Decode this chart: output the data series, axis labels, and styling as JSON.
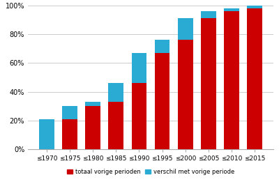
{
  "categories": [
    "≤1970",
    "≤1975",
    "≤1980",
    "≤1985",
    "≤1990",
    "≤1995",
    "≤2000",
    "≤2005",
    "≤2010",
    "≤2015"
  ],
  "red_values": [
    0,
    21,
    30,
    33,
    46,
    67,
    76,
    91,
    96,
    98
  ],
  "blue_values": [
    21,
    9,
    3,
    13,
    21,
    9,
    15,
    5,
    2,
    2
  ],
  "red_color": "#CC0000",
  "blue_color": "#29ABD4",
  "legend_red": "totaal vorige perioden",
  "legend_blue": "verschil met vorige periode",
  "ylim": [
    0,
    100
  ],
  "yticks": [
    0,
    20,
    40,
    60,
    80,
    100
  ],
  "ytick_labels": [
    "0%",
    "20%",
    "40%",
    "60%",
    "80%",
    "100%"
  ],
  "background_color": "#FFFFFF",
  "grid_color": "#CCCCCC"
}
